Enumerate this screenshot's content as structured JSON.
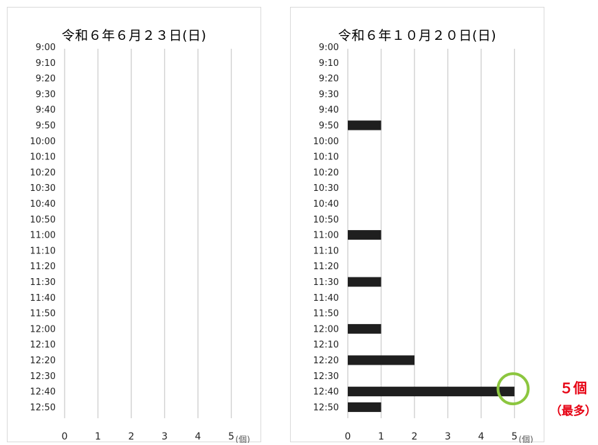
{
  "chart_data": [
    {
      "type": "bar",
      "orientation": "horizontal",
      "title": "令和６年６月２３日(日)",
      "categories": [
        "9:00",
        "9:10",
        "9:20",
        "9:30",
        "9:40",
        "9:50",
        "10:00",
        "10:10",
        "10:20",
        "10:30",
        "10:40",
        "10:50",
        "11:00",
        "11:10",
        "11:20",
        "11:30",
        "11:40",
        "11:50",
        "12:00",
        "12:10",
        "12:20",
        "12:30",
        "12:40",
        "12:50"
      ],
      "values": [
        0,
        0,
        0,
        0,
        0,
        0,
        0,
        0,
        0,
        0,
        0,
        0,
        0,
        0,
        0,
        0,
        0,
        0,
        0,
        0,
        0,
        0,
        0,
        0
      ],
      "xticks": [
        0,
        1,
        2,
        3,
        4,
        5
      ],
      "xlim": [
        0,
        5
      ],
      "x_unit": "(個)",
      "grid": true
    },
    {
      "type": "bar",
      "orientation": "horizontal",
      "title": "令和６年１０月２０日(日)",
      "categories": [
        "9:00",
        "9:10",
        "9:20",
        "9:30",
        "9:40",
        "9:50",
        "10:00",
        "10:10",
        "10:20",
        "10:30",
        "10:40",
        "10:50",
        "11:00",
        "11:10",
        "11:20",
        "11:30",
        "11:40",
        "11:50",
        "12:00",
        "12:10",
        "12:20",
        "12:30",
        "12:40",
        "12:50"
      ],
      "values": [
        0,
        0,
        0,
        0,
        0,
        1,
        0,
        0,
        0,
        0,
        0,
        0,
        1,
        0,
        0,
        1,
        0,
        0,
        1,
        0,
        2,
        0,
        5,
        1
      ],
      "xticks": [
        0,
        1,
        2,
        3,
        4,
        5
      ],
      "xlim": [
        0,
        5
      ],
      "x_unit": "(個)",
      "grid": true,
      "highlight": {
        "category": "12:40",
        "value": 5,
        "color": "#8cc63f"
      }
    }
  ],
  "annotation": {
    "count_text": "５個",
    "note_text": "（最多）",
    "color": "#e60012"
  }
}
